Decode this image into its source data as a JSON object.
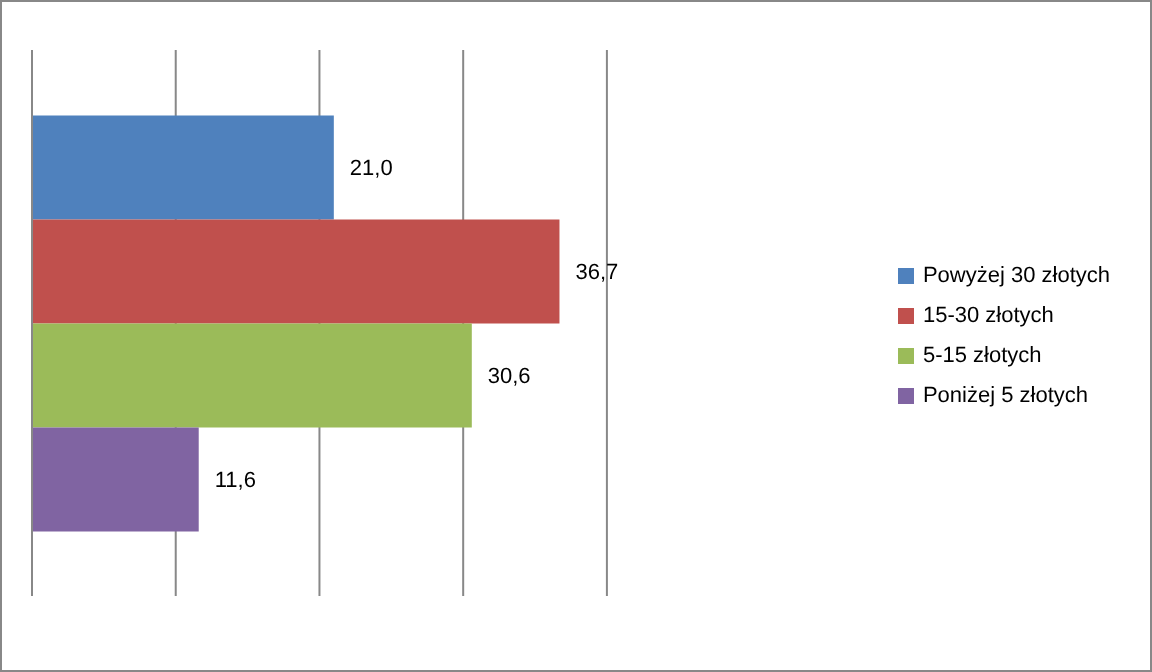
{
  "chart_data": {
    "type": "bar",
    "orientation": "horizontal",
    "categories": [
      null
    ],
    "series": [
      {
        "name": "Powyżej 30 złotych",
        "color": "#4f81bd",
        "values": [
          21.0
        ],
        "value_labels": [
          "21,0"
        ]
      },
      {
        "name": "15-30 złotych",
        "color": "#c0504d",
        "values": [
          36.7
        ],
        "value_labels": [
          "36,7"
        ]
      },
      {
        "name": "5-15 złotych",
        "color": "#9bbb59",
        "values": [
          30.6
        ],
        "value_labels": [
          "30,6"
        ]
      },
      {
        "name": "Poniżej 5 złotych",
        "color": "#8064a2",
        "values": [
          11.6
        ],
        "value_labels": [
          "11,6"
        ]
      }
    ],
    "xlim": [
      0,
      40
    ],
    "xticks": [
      {
        "value": 0,
        "label": null
      },
      {
        "value": 10,
        "label": null
      },
      {
        "value": 20,
        "label": null
      },
      {
        "value": 30,
        "label": null
      },
      {
        "value": 40,
        "label": null
      }
    ],
    "tick_labels": false,
    "grid": "x",
    "legend": "right"
  }
}
